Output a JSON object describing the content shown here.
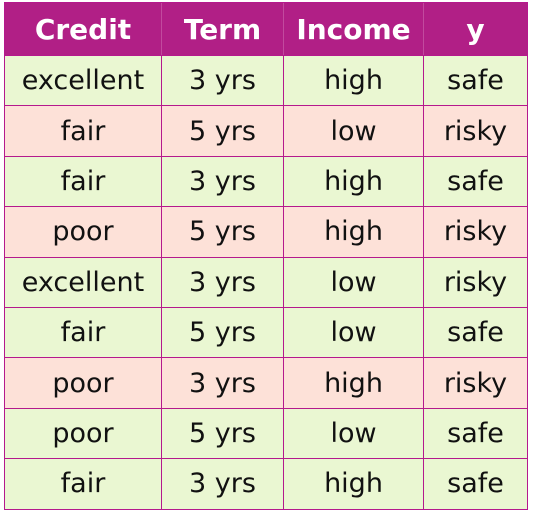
{
  "table": {
    "headers": [
      "Credit",
      "Term",
      "Income",
      "y"
    ],
    "rows": [
      [
        "excellent",
        "3 yrs",
        "high",
        "safe"
      ],
      [
        "fair",
        "5 yrs",
        "low",
        "risky"
      ],
      [
        "fair",
        "3 yrs",
        "high",
        "safe"
      ],
      [
        "poor",
        "5 yrs",
        "high",
        "risky"
      ],
      [
        "excellent",
        "3 yrs",
        "low",
        "risky"
      ],
      [
        "fair",
        "5 yrs",
        "low",
        "safe"
      ],
      [
        "poor",
        "3 yrs",
        "high",
        "risky"
      ],
      [
        "poor",
        "5 yrs",
        "low",
        "safe"
      ],
      [
        "fair",
        "3 yrs",
        "high",
        "safe"
      ]
    ]
  },
  "colors": {
    "header_bg": "#b11f86",
    "safe_row_bg": "#eaf7d2",
    "risky_row_bg": "#fde1d8",
    "border": "#b5198d"
  }
}
